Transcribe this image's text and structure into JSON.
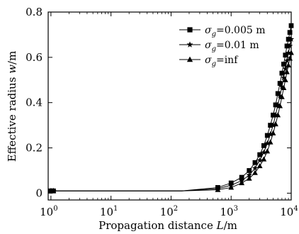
{
  "chart_data": {
    "type": "line",
    "xlabel": "Propagation distance",
    "xlabel_symbol": "L",
    "xlabel_unit": "/m",
    "ylabel": "Effective radius",
    "ylabel_symbol": "w",
    "ylabel_unit": "/m",
    "xscale": "log",
    "xlim": [
      0.9,
      10000
    ],
    "ylim": [
      -0.03,
      0.8
    ],
    "x_ticks": [
      {
        "base": "10",
        "exp": "0",
        "value": 1
      },
      {
        "base": "10",
        "exp": "1",
        "value": 10
      },
      {
        "base": "10",
        "exp": "2",
        "value": 100
      },
      {
        "base": "10",
        "exp": "3",
        "value": 1000
      },
      {
        "base": "10",
        "exp": "4",
        "value": 10000
      }
    ],
    "y_ticks": [
      {
        "label": "0",
        "value": 0
      },
      {
        "label": "0.2",
        "value": 0.2
      },
      {
        "label": "0.4",
        "value": 0.4
      },
      {
        "label": "0.6",
        "value": 0.6
      },
      {
        "label": "0.8",
        "value": 0.8
      }
    ],
    "legend_position": "top-right",
    "series": [
      {
        "name": "σg=0.005 m",
        "sub": "g",
        "label_tail": "=0.005 m",
        "marker": "square",
        "x": [
          1,
          1.1,
          150,
          600,
          1000,
          1500,
          2000,
          2500,
          3000,
          3500,
          4000,
          4500,
          5000,
          5500,
          6000,
          6500,
          7000,
          7500,
          8000,
          8500,
          9000,
          9500,
          10000
        ],
        "y": [
          0.01,
          0.01,
          0.01,
          0.025,
          0.045,
          0.07,
          0.1,
          0.135,
          0.17,
          0.21,
          0.255,
          0.3,
          0.345,
          0.39,
          0.44,
          0.485,
          0.53,
          0.57,
          0.61,
          0.65,
          0.68,
          0.71,
          0.74
        ]
      },
      {
        "name": "σg=0.01 m",
        "sub": "g",
        "label_tail": "=0.01 m",
        "marker": "star",
        "x": [
          1,
          1.1,
          150,
          600,
          1000,
          1500,
          2000,
          2500,
          3000,
          3500,
          4000,
          4500,
          5000,
          5500,
          6000,
          6500,
          7000,
          7500,
          8000,
          8500,
          9000,
          9500,
          10000
        ],
        "y": [
          0.01,
          0.01,
          0.01,
          0.02,
          0.035,
          0.055,
          0.08,
          0.11,
          0.145,
          0.18,
          0.22,
          0.26,
          0.3,
          0.345,
          0.39,
          0.43,
          0.47,
          0.51,
          0.55,
          0.585,
          0.62,
          0.65,
          0.68
        ]
      },
      {
        "name": "σg=inf",
        "sub": "g",
        "label_tail": "=inf",
        "marker": "triangle",
        "x": [
          1,
          1.1,
          150,
          600,
          1000,
          1500,
          2000,
          2500,
          3000,
          3500,
          4000,
          4500,
          5000,
          5500,
          6000,
          6500,
          7000,
          7500,
          8000,
          8500,
          9000,
          9500,
          10000
        ],
        "y": [
          0.01,
          0.01,
          0.01,
          0.015,
          0.025,
          0.045,
          0.065,
          0.09,
          0.12,
          0.15,
          0.185,
          0.225,
          0.265,
          0.305,
          0.345,
          0.385,
          0.425,
          0.465,
          0.5,
          0.535,
          0.565,
          0.595,
          0.62
        ]
      }
    ]
  }
}
